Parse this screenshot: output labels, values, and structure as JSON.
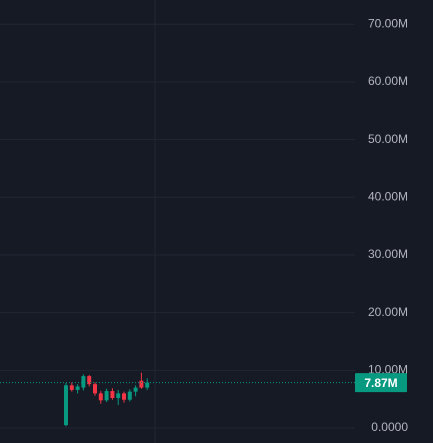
{
  "chart_data": {
    "type": "candlestick",
    "categories": [
      null,
      null,
      null,
      null,
      null,
      null,
      null,
      null,
      null,
      null,
      null,
      null,
      null,
      null,
      null
    ],
    "open": [
      500000,
      7400000,
      6600000,
      7000000,
      9000000,
      7600000,
      6000000,
      4800000,
      6400000,
      5200000,
      6000000,
      4900000,
      6300000,
      8200000,
      7000000
    ],
    "high": [
      7800000,
      7900000,
      7600000,
      9300000,
      9200000,
      7900000,
      6400000,
      6800000,
      6900000,
      6600000,
      6300000,
      6700000,
      7400000,
      9600000,
      8600000
    ],
    "low": [
      300000,
      6300000,
      6000000,
      6500000,
      7200000,
      5600000,
      4200000,
      4500000,
      4900000,
      4000000,
      4400000,
      4600000,
      5500000,
      6800000,
      6600000
    ],
    "close": [
      7400000,
      6600000,
      7200000,
      9000000,
      7600000,
      6000000,
      4800000,
      6400000,
      5200000,
      6000000,
      4900000,
      6300000,
      7000000,
      7000000,
      7870000
    ],
    "up_color": "#089981",
    "down_color": "#f23645",
    "ylim": [
      -2600000,
      74200000
    ],
    "yticks": [
      {
        "value": 0,
        "label": "0.0000"
      },
      {
        "value": 10000000,
        "label": "10.00M"
      },
      {
        "value": 20000000,
        "label": "20.00M"
      },
      {
        "value": 30000000,
        "label": "30.00M"
      },
      {
        "value": 40000000,
        "label": "40.00M"
      },
      {
        "value": 50000000,
        "label": "50.00M"
      },
      {
        "value": 60000000,
        "label": "60.00M"
      },
      {
        "value": 70000000,
        "label": "70.00M"
      }
    ],
    "grid": true,
    "last_price": {
      "value": 7870000,
      "label": "7.87M"
    }
  }
}
